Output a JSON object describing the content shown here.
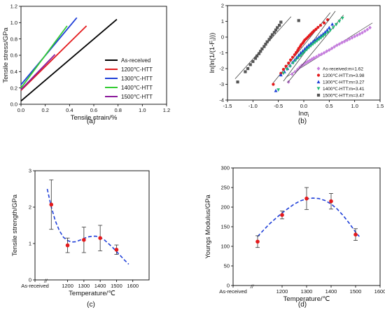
{
  "chart_data": [
    {
      "id": "a",
      "type": "line",
      "caption": "(a)",
      "xlabel": "Tensile strain/%",
      "ylabel": "Tensile stress/GPa",
      "xlim": [
        0,
        1.2
      ],
      "ylim": [
        0,
        1.2
      ],
      "xticks": [
        "0.0",
        "0.2",
        "0.4",
        "0.6",
        "0.8",
        "1.0",
        "1.2"
      ],
      "yticks": [
        "0.0",
        "0.2",
        "0.4",
        "0.6",
        "0.8",
        "1.0",
        "1.2"
      ],
      "legend": "right-center",
      "series": [
        {
          "name": "As-received",
          "color": "#000000",
          "x": [
            0.0,
            0.79
          ],
          "y": [
            0.04,
            1.04
          ]
        },
        {
          "name": "1200℃-HTT",
          "color": "#e41a1c",
          "x": [
            0.0,
            0.54
          ],
          "y": [
            0.17,
            0.96
          ]
        },
        {
          "name": "1300℃-HTT",
          "color": "#1f3fd8",
          "x": [
            0.0,
            0.46
          ],
          "y": [
            0.24,
            1.06
          ]
        },
        {
          "name": "1400℃-HTT",
          "color": "#33cc33",
          "x": [
            0.0,
            0.38
          ],
          "y": [
            0.2,
            0.96
          ]
        },
        {
          "name": "1500℃-HTT",
          "color": "#8b1a9b",
          "x": [
            0.0,
            0.28
          ],
          "y": [
            0.18,
            0.61
          ]
        }
      ]
    },
    {
      "id": "b",
      "type": "scatter",
      "caption": "(b)",
      "xlabel": "lnσ",
      "xlabel_sub": "i",
      "ylabel": "ln(ln(1/(1-F",
      "ylabel_sub": "i",
      "ylabel_end": ")))",
      "xlim": [
        -1.5,
        1.5
      ],
      "ylim": [
        -4,
        2
      ],
      "xticks": [
        "-1.5",
        "-1.0",
        "-0.5",
        "0.0",
        "0.5",
        "1.0",
        "1.5"
      ],
      "yticks": [
        "-4",
        "-3",
        "-2",
        "-1",
        "0",
        "1",
        "2"
      ],
      "legend": "bottom-right",
      "series": [
        {
          "name": "As-received:m=1.62",
          "color": "#c77ee0",
          "marker": "diamond",
          "x": [
            -0.3,
            -0.23,
            -0.17,
            -0.12,
            -0.08,
            -0.04,
            0.0,
            0.04,
            0.08,
            0.12,
            0.16,
            0.2,
            0.25,
            0.3,
            0.35,
            0.4,
            0.45,
            0.5,
            0.55,
            0.6,
            0.65,
            0.7,
            0.75,
            0.8,
            0.85,
            0.9,
            0.95,
            1.0,
            1.05,
            1.1,
            1.15,
            1.2,
            1.25,
            1.3
          ],
          "y": [
            -2.85,
            -2.35,
            -2.2,
            -2.05,
            -1.92,
            -1.8,
            -1.72,
            -1.62,
            -1.55,
            -1.48,
            -1.4,
            -1.32,
            -1.25,
            -1.15,
            -1.08,
            -1.0,
            -0.9,
            -0.82,
            -0.72,
            -0.62,
            -0.52,
            -0.44,
            -0.35,
            -0.28,
            -0.2,
            -0.12,
            -0.04,
            0.04,
            0.12,
            0.2,
            0.28,
            0.38,
            0.48,
            0.6
          ],
          "fit": {
            "x": [
              -0.35,
              1.35
            ],
            "y": [
              -2.55,
              0.9
            ]
          }
        },
        {
          "name": "1200℃-HTT:m=3.98",
          "color": "#e41a1c",
          "marker": "circle",
          "x": [
            -0.6,
            -0.45,
            -0.4,
            -0.35,
            -0.3,
            -0.26,
            -0.22,
            -0.18,
            -0.15,
            -0.12,
            -0.1,
            -0.07,
            -0.05,
            -0.02,
            0.0,
            0.02,
            0.05,
            0.08,
            0.11,
            0.14,
            0.17,
            0.2,
            0.24,
            0.28,
            0.33,
            0.4,
            0.47
          ],
          "y": [
            -3.0,
            -2.3,
            -2.05,
            -1.85,
            -1.65,
            -1.45,
            -1.28,
            -1.12,
            -0.98,
            -0.85,
            -0.72,
            -0.6,
            -0.48,
            -0.38,
            -0.28,
            -0.18,
            -0.1,
            0.0,
            0.1,
            0.2,
            0.3,
            0.4,
            0.5,
            0.62,
            0.75,
            0.9,
            1.1
          ],
          "fit": {
            "x": [
              -0.6,
              0.52
            ],
            "y": [
              -2.9,
              1.55
            ]
          }
        },
        {
          "name": "1300℃-HTT:m=3.27",
          "color": "#1f3fd8",
          "marker": "triangle-up",
          "x": [
            -0.55,
            -0.45,
            -0.38,
            -0.32,
            -0.27,
            -0.22,
            -0.18,
            -0.14,
            -0.1,
            -0.06,
            -0.02,
            0.02,
            0.06,
            0.1,
            0.14,
            0.18,
            0.22,
            0.26,
            0.3,
            0.34,
            0.38,
            0.42,
            0.46,
            0.5,
            0.56
          ],
          "y": [
            -3.4,
            -2.4,
            -2.2,
            -2.0,
            -1.8,
            -1.6,
            -1.45,
            -1.3,
            -1.15,
            -1.0,
            -0.88,
            -0.75,
            -0.62,
            -0.5,
            -0.4,
            -0.3,
            -0.2,
            -0.1,
            0.0,
            0.1,
            0.2,
            0.32,
            0.45,
            0.6,
            0.82
          ],
          "fit": {
            "x": [
              -0.4,
              0.62
            ],
            "y": [
              -2.8,
              1.65
            ]
          }
        },
        {
          "name": "1400℃-HTT:m=3.41",
          "color": "#22bb77",
          "marker": "triangle-down",
          "x": [
            -0.5,
            -0.4,
            -0.33,
            -0.27,
            -0.21,
            -0.16,
            -0.11,
            -0.06,
            -0.02,
            0.02,
            0.06,
            0.1,
            0.14,
            0.18,
            0.22,
            0.26,
            0.3,
            0.34,
            0.38,
            0.42,
            0.47,
            0.52,
            0.58,
            0.64,
            0.7,
            0.76
          ],
          "y": [
            -3.35,
            -2.3,
            -2.05,
            -1.85,
            -1.65,
            -1.48,
            -1.32,
            -1.18,
            -1.05,
            -0.92,
            -0.8,
            -0.68,
            -0.56,
            -0.45,
            -0.35,
            -0.25,
            -0.15,
            -0.05,
            0.05,
            0.15,
            0.28,
            0.42,
            0.6,
            0.8,
            1.0,
            1.2
          ],
          "fit": {
            "x": [
              -0.32,
              0.78
            ],
            "y": [
              -2.9,
              1.4
            ]
          }
        },
        {
          "name": "1500℃-HTT:m=3.47",
          "color": "#555555",
          "marker": "square",
          "x": [
            -1.3,
            -1.15,
            -1.1,
            -1.05,
            -1.0,
            -0.95,
            -0.92,
            -0.88,
            -0.85,
            -0.82,
            -0.78,
            -0.75,
            -0.72,
            -0.68,
            -0.65,
            -0.62,
            -0.58,
            -0.55,
            -0.52,
            -0.48,
            -0.45,
            -0.1
          ],
          "y": [
            -2.85,
            -2.2,
            -2.0,
            -1.75,
            -1.55,
            -1.35,
            -1.2,
            -1.05,
            -0.9,
            -0.75,
            -0.6,
            -0.45,
            -0.3,
            -0.15,
            0.0,
            0.15,
            0.3,
            0.45,
            0.6,
            0.75,
            0.95,
            1.05
          ],
          "fit": {
            "x": [
              -1.35,
              -0.25
            ],
            "y": [
              -2.65,
              1.3
            ]
          }
        }
      ]
    },
    {
      "id": "c",
      "type": "scatter",
      "caption": "(c)",
      "xlabel": "Temperature/℃",
      "ylabel": "Tensile strength/GPa",
      "xlim": [
        1000,
        1700
      ],
      "ylim": [
        0,
        3
      ],
      "xticks": [
        "As-received",
        "1200",
        "1300",
        "1400",
        "1500",
        "1600"
      ],
      "xtick_values": [
        1000,
        1200,
        1300,
        1400,
        1500,
        1600
      ],
      "yticks": [
        "0",
        "1",
        "2",
        "3"
      ],
      "axis_break": "//",
      "points": [
        {
          "x": 1100,
          "y": 2.07,
          "err": 0.68
        },
        {
          "x": 1200,
          "y": 0.95,
          "err": 0.2
        },
        {
          "x": 1300,
          "y": 1.1,
          "err": 0.35
        },
        {
          "x": 1400,
          "y": 1.15,
          "err": 0.35
        },
        {
          "x": 1500,
          "y": 0.83,
          "err": 0.13
        }
      ],
      "point_color": "#e41a1c",
      "fit_color": "#1f3fd8",
      "fit": {
        "x": [
          1075,
          1100,
          1125,
          1150,
          1175,
          1200,
          1225,
          1250,
          1275,
          1300,
          1325,
          1350,
          1375,
          1400,
          1425,
          1450,
          1475,
          1500,
          1525,
          1550,
          1575
        ],
        "y": [
          2.5,
          2.0,
          1.62,
          1.35,
          1.17,
          1.08,
          1.04,
          1.05,
          1.09,
          1.14,
          1.18,
          1.2,
          1.2,
          1.17,
          1.1,
          1.0,
          0.9,
          0.78,
          0.66,
          0.54,
          0.43
        ]
      }
    },
    {
      "id": "d",
      "type": "scatter",
      "caption": "(d)",
      "xlabel": "Temperature/℃",
      "ylabel": "Youngs Modulus/GPa",
      "xlim": [
        1000,
        1600
      ],
      "ylim": [
        0,
        300
      ],
      "xticks": [
        "As-received",
        "1200",
        "1300",
        "1400",
        "1500",
        "1600"
      ],
      "xtick_values": [
        1000,
        1200,
        1300,
        1400,
        1500,
        1600
      ],
      "yticks": [
        "0",
        "50",
        "100",
        "150",
        "200",
        "250",
        "300"
      ],
      "axis_break": "//",
      "points": [
        {
          "x": 1100,
          "y": 112,
          "err": 15
        },
        {
          "x": 1200,
          "y": 180,
          "err": 10
        },
        {
          "x": 1300,
          "y": 222,
          "err": 28
        },
        {
          "x": 1400,
          "y": 215,
          "err": 20
        },
        {
          "x": 1500,
          "y": 130,
          "err": 15
        }
      ],
      "point_color": "#e41a1c",
      "fit_color": "#1f3fd8",
      "fit": {
        "x": [
          1100,
          1125,
          1150,
          1175,
          1200,
          1225,
          1250,
          1275,
          1300,
          1325,
          1350,
          1375,
          1400,
          1425,
          1450,
          1475,
          1500,
          1515
        ],
        "y": [
          125,
          142,
          158,
          172,
          185,
          197,
          208,
          216,
          221,
          223,
          222,
          217,
          208,
          195,
          178,
          158,
          136,
          125
        ]
      }
    }
  ]
}
